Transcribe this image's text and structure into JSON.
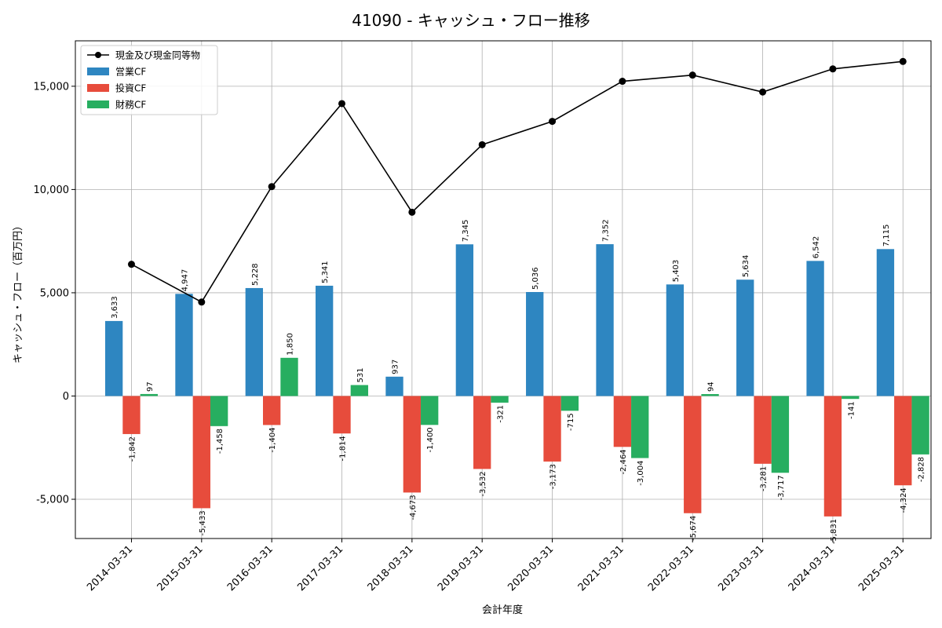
{
  "chart_data": {
    "type": "bar",
    "title": "41090 - キャッシュ・フロー推移",
    "xlabel": "会計年度",
    "ylabel": "キャッシュ・フロー（百万円）",
    "categories": [
      "2014-03-31",
      "2015-03-31",
      "2016-03-31",
      "2017-03-31",
      "2018-03-31",
      "2019-03-31",
      "2020-03-31",
      "2021-03-31",
      "2022-03-31",
      "2023-03-31",
      "2024-03-31",
      "2025-03-31"
    ],
    "ylim": [
      -6900,
      17200
    ],
    "yticks": [
      -5000,
      0,
      5000,
      10000,
      15000
    ],
    "ytick_labels": [
      "-5,000",
      "0",
      "5,000",
      "10,000",
      "15,000"
    ],
    "grid": true,
    "legend_position": "upper-left",
    "series": [
      {
        "name": "営業CF",
        "kind": "bar",
        "color": "#2e86c1",
        "values": [
          3633,
          4947,
          5228,
          5341,
          937,
          7345,
          5036,
          7352,
          5403,
          5634,
          6542,
          7115
        ],
        "labels": [
          "3,633",
          "4,947",
          "5,228",
          "5,341",
          "937",
          "7,345",
          "5,036",
          "7,352",
          "5,403",
          "5,634",
          "6,542",
          "7,115"
        ]
      },
      {
        "name": "投資CF",
        "kind": "bar",
        "color": "#e74c3c",
        "values": [
          -1842,
          -5433,
          -1404,
          -1814,
          -4673,
          -3532,
          -3173,
          -2464,
          -5674,
          -3281,
          -5831,
          -4324
        ],
        "labels": [
          "-1,842",
          "-5,433",
          "-1,404",
          "-1,814",
          "-4,673",
          "-3,532",
          "-3,173",
          "-2,464",
          "-5,674",
          "-3,281",
          "-5,831",
          "-4,324"
        ]
      },
      {
        "name": "財務CF",
        "kind": "bar",
        "color": "#27ae60",
        "values": [
          97,
          -1458,
          1850,
          531,
          -1400,
          -321,
          -715,
          -3004,
          94,
          -3717,
          -141,
          -2828
        ],
        "labels": [
          "97",
          "-1,458",
          "1,850",
          "531",
          "-1,400",
          "-321",
          "-715",
          "-3,004",
          "94",
          "-3,717",
          "-141",
          "-2,828"
        ]
      },
      {
        "name": "現金及び現金同等物",
        "kind": "line",
        "color": "#000000",
        "values": [
          6380,
          4550,
          10140,
          14160,
          8900,
          12170,
          13300,
          15240,
          15540,
          14720,
          15840,
          16200
        ]
      }
    ]
  }
}
